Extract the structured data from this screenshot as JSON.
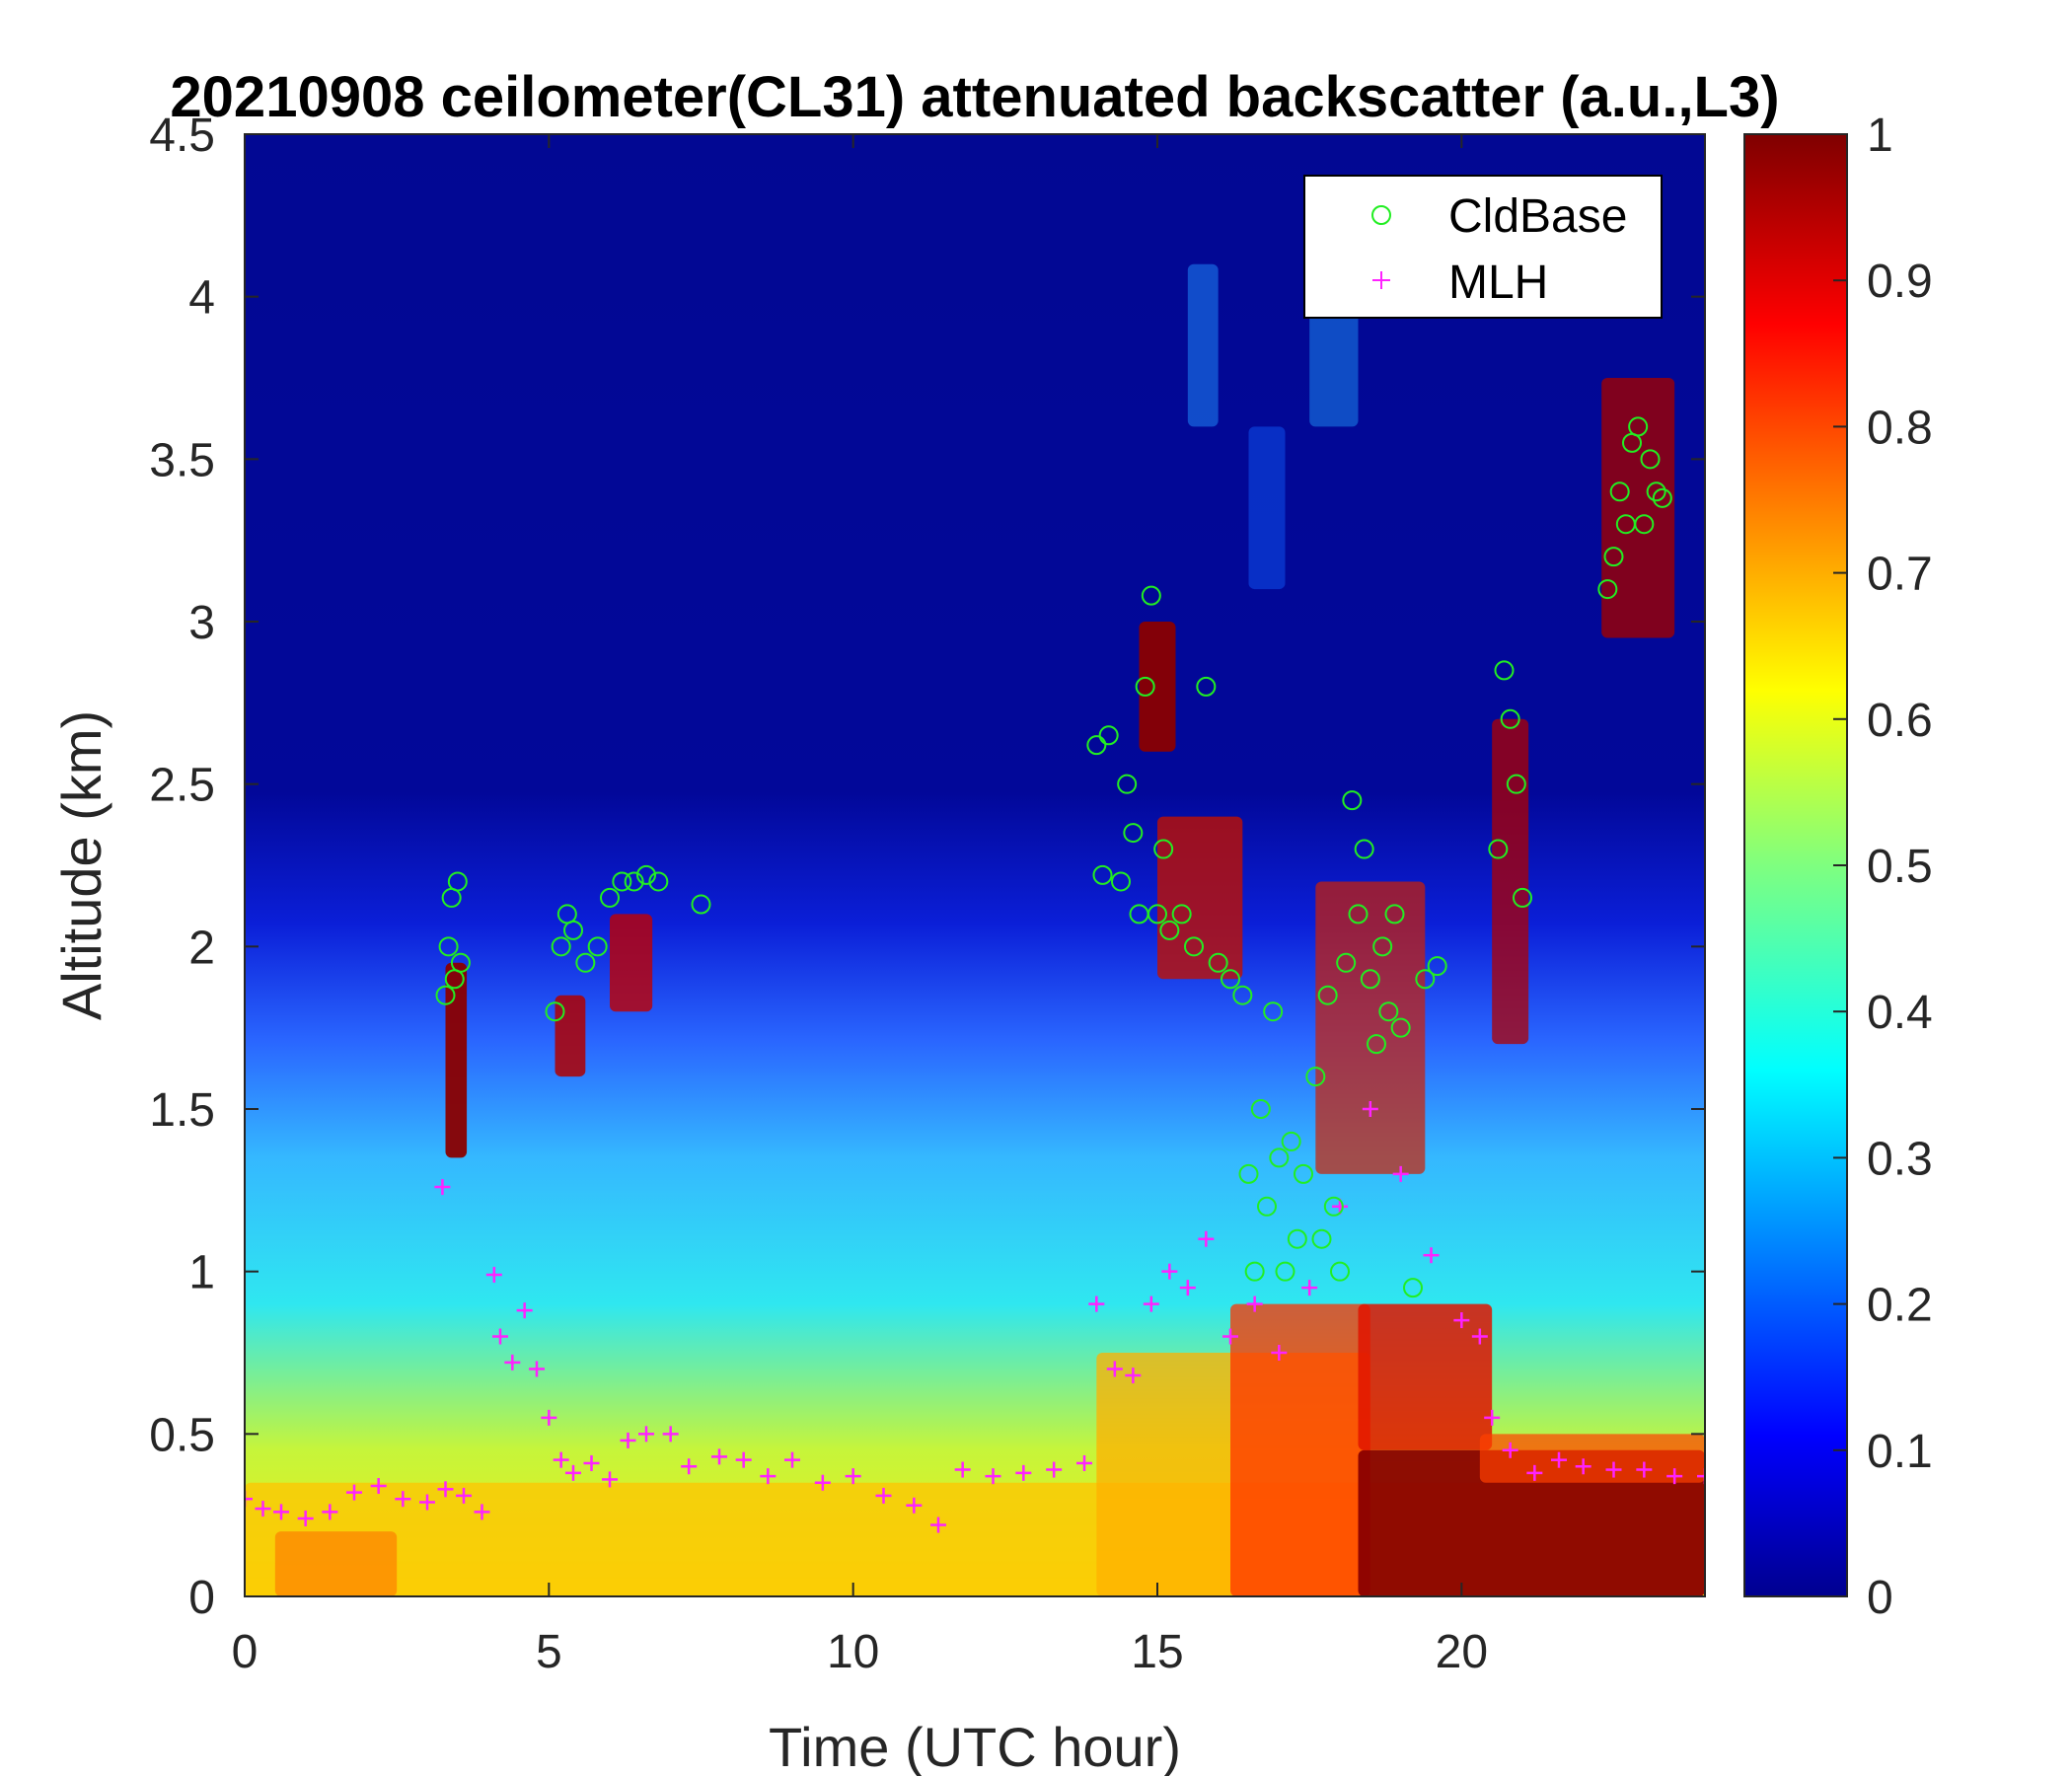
{
  "chart_data": {
    "type": "heatmap",
    "title": "20210908 ceilometer(CL31) attenuated backscatter (a.u.,L3)",
    "xlabel": "Time (UTC hour)",
    "ylabel": "Altitude (km)",
    "xlim": [
      0,
      24
    ],
    "ylim": [
      0,
      4.5
    ],
    "xticks": [
      "0",
      "5",
      "10",
      "15",
      "20"
    ],
    "yticks": [
      "0",
      "0.5",
      "1",
      "1.5",
      "2",
      "2.5",
      "3",
      "3.5",
      "4",
      "4.5"
    ],
    "colorbar": {
      "colormap": "jet",
      "range": [
        0,
        1
      ],
      "ticks": [
        "0",
        "0.1",
        "0.2",
        "0.3",
        "0.4",
        "0.5",
        "0.6",
        "0.7",
        "0.8",
        "0.9",
        "1"
      ]
    },
    "legend": {
      "location": "top-right",
      "entries": [
        {
          "label": "CldBase",
          "marker": "circle",
          "color": "#22ee22"
        },
        {
          "label": "MLH",
          "marker": "plus",
          "color": "#ff22ff"
        }
      ]
    },
    "series": [
      {
        "name": "MLH",
        "marker": "plus",
        "color": "#ff22ff",
        "points": [
          [
            0,
            0.3
          ],
          [
            0.3,
            0.27
          ],
          [
            0.6,
            0.26
          ],
          [
            1.0,
            0.24
          ],
          [
            1.4,
            0.26
          ],
          [
            1.8,
            0.32
          ],
          [
            2.2,
            0.34
          ],
          [
            2.6,
            0.3
          ],
          [
            3.0,
            0.29
          ],
          [
            3.3,
            0.33
          ],
          [
            3.6,
            0.31
          ],
          [
            3.9,
            0.26
          ],
          [
            3.25,
            1.26
          ],
          [
            4.1,
            0.99
          ],
          [
            4.2,
            0.8
          ],
          [
            4.4,
            0.72
          ],
          [
            4.6,
            0.88
          ],
          [
            4.8,
            0.7
          ],
          [
            5.0,
            0.55
          ],
          [
            5.2,
            0.42
          ],
          [
            5.4,
            0.38
          ],
          [
            5.7,
            0.41
          ],
          [
            6.0,
            0.36
          ],
          [
            6.3,
            0.48
          ],
          [
            6.6,
            0.5
          ],
          [
            7.0,
            0.5
          ],
          [
            7.3,
            0.4
          ],
          [
            7.8,
            0.43
          ],
          [
            8.2,
            0.42
          ],
          [
            8.6,
            0.37
          ],
          [
            9.0,
            0.42
          ],
          [
            9.5,
            0.35
          ],
          [
            10.0,
            0.37
          ],
          [
            10.5,
            0.31
          ],
          [
            11.0,
            0.28
          ],
          [
            11.4,
            0.22
          ],
          [
            11.8,
            0.39
          ],
          [
            12.3,
            0.37
          ],
          [
            12.8,
            0.38
          ],
          [
            13.3,
            0.39
          ],
          [
            13.8,
            0.41
          ],
          [
            14.0,
            0.9
          ],
          [
            14.3,
            0.7
          ],
          [
            14.6,
            0.68
          ],
          [
            14.9,
            0.9
          ],
          [
            15.2,
            1.0
          ],
          [
            15.5,
            0.95
          ],
          [
            15.8,
            1.1
          ],
          [
            16.2,
            0.8
          ],
          [
            16.6,
            0.9
          ],
          [
            17.0,
            0.75
          ],
          [
            17.5,
            0.95
          ],
          [
            18.0,
            1.2
          ],
          [
            18.5,
            1.5
          ],
          [
            19.0,
            1.3
          ],
          [
            19.5,
            1.05
          ],
          [
            20.0,
            0.85
          ],
          [
            20.3,
            0.8
          ],
          [
            20.5,
            0.55
          ],
          [
            20.8,
            0.45
          ],
          [
            21.2,
            0.38
          ],
          [
            21.6,
            0.42
          ],
          [
            22.0,
            0.4
          ],
          [
            22.5,
            0.39
          ],
          [
            23.0,
            0.39
          ],
          [
            23.5,
            0.37
          ],
          [
            24.0,
            0.37
          ]
        ]
      },
      {
        "name": "CldBase",
        "marker": "circle",
        "color": "#22ee22",
        "points": [
          [
            3.3,
            1.85
          ],
          [
            3.35,
            2.0
          ],
          [
            3.4,
            2.15
          ],
          [
            3.45,
            1.9
          ],
          [
            3.5,
            2.2
          ],
          [
            3.55,
            1.95
          ],
          [
            5.1,
            1.8
          ],
          [
            5.2,
            2.0
          ],
          [
            5.3,
            2.1
          ],
          [
            5.4,
            2.05
          ],
          [
            5.6,
            1.95
          ],
          [
            5.8,
            2.0
          ],
          [
            6.0,
            2.15
          ],
          [
            6.2,
            2.2
          ],
          [
            6.4,
            2.2
          ],
          [
            6.6,
            2.22
          ],
          [
            6.8,
            2.2
          ],
          [
            7.5,
            2.13
          ],
          [
            14.0,
            2.62
          ],
          [
            14.1,
            2.22
          ],
          [
            14.2,
            2.65
          ],
          [
            14.4,
            2.2
          ],
          [
            14.5,
            2.5
          ],
          [
            14.6,
            2.35
          ],
          [
            14.7,
            2.1
          ],
          [
            14.8,
            2.8
          ],
          [
            14.9,
            3.08
          ],
          [
            15.0,
            2.1
          ],
          [
            15.1,
            2.3
          ],
          [
            15.2,
            2.05
          ],
          [
            15.4,
            2.1
          ],
          [
            15.6,
            2.0
          ],
          [
            15.8,
            2.8
          ],
          [
            16.0,
            1.95
          ],
          [
            16.2,
            1.9
          ],
          [
            16.4,
            1.85
          ],
          [
            16.5,
            1.3
          ],
          [
            16.6,
            1.0
          ],
          [
            16.7,
            1.5
          ],
          [
            16.8,
            1.2
          ],
          [
            16.9,
            1.8
          ],
          [
            17.0,
            1.35
          ],
          [
            17.1,
            1.0
          ],
          [
            17.2,
            1.4
          ],
          [
            17.3,
            1.1
          ],
          [
            17.4,
            1.3
          ],
          [
            17.6,
            1.6
          ],
          [
            17.7,
            1.1
          ],
          [
            17.8,
            1.85
          ],
          [
            17.9,
            1.2
          ],
          [
            18.0,
            1.0
          ],
          [
            18.1,
            1.95
          ],
          [
            18.2,
            2.45
          ],
          [
            18.3,
            2.1
          ],
          [
            18.4,
            2.3
          ],
          [
            18.5,
            1.9
          ],
          [
            18.6,
            1.7
          ],
          [
            18.7,
            2.0
          ],
          [
            18.8,
            1.8
          ],
          [
            18.9,
            2.1
          ],
          [
            19.0,
            1.75
          ],
          [
            19.2,
            0.95
          ],
          [
            19.4,
            1.9
          ],
          [
            19.6,
            1.94
          ],
          [
            20.6,
            2.3
          ],
          [
            20.7,
            2.85
          ],
          [
            20.8,
            2.7
          ],
          [
            20.9,
            2.5
          ],
          [
            21.0,
            2.15
          ],
          [
            22.4,
            3.1
          ],
          [
            22.5,
            3.2
          ],
          [
            22.6,
            3.4
          ],
          [
            22.7,
            3.3
          ],
          [
            22.8,
            3.55
          ],
          [
            22.9,
            3.6
          ],
          [
            23.0,
            3.3
          ],
          [
            23.1,
            3.5
          ],
          [
            23.2,
            3.4
          ],
          [
            23.3,
            3.38
          ]
        ]
      }
    ]
  }
}
